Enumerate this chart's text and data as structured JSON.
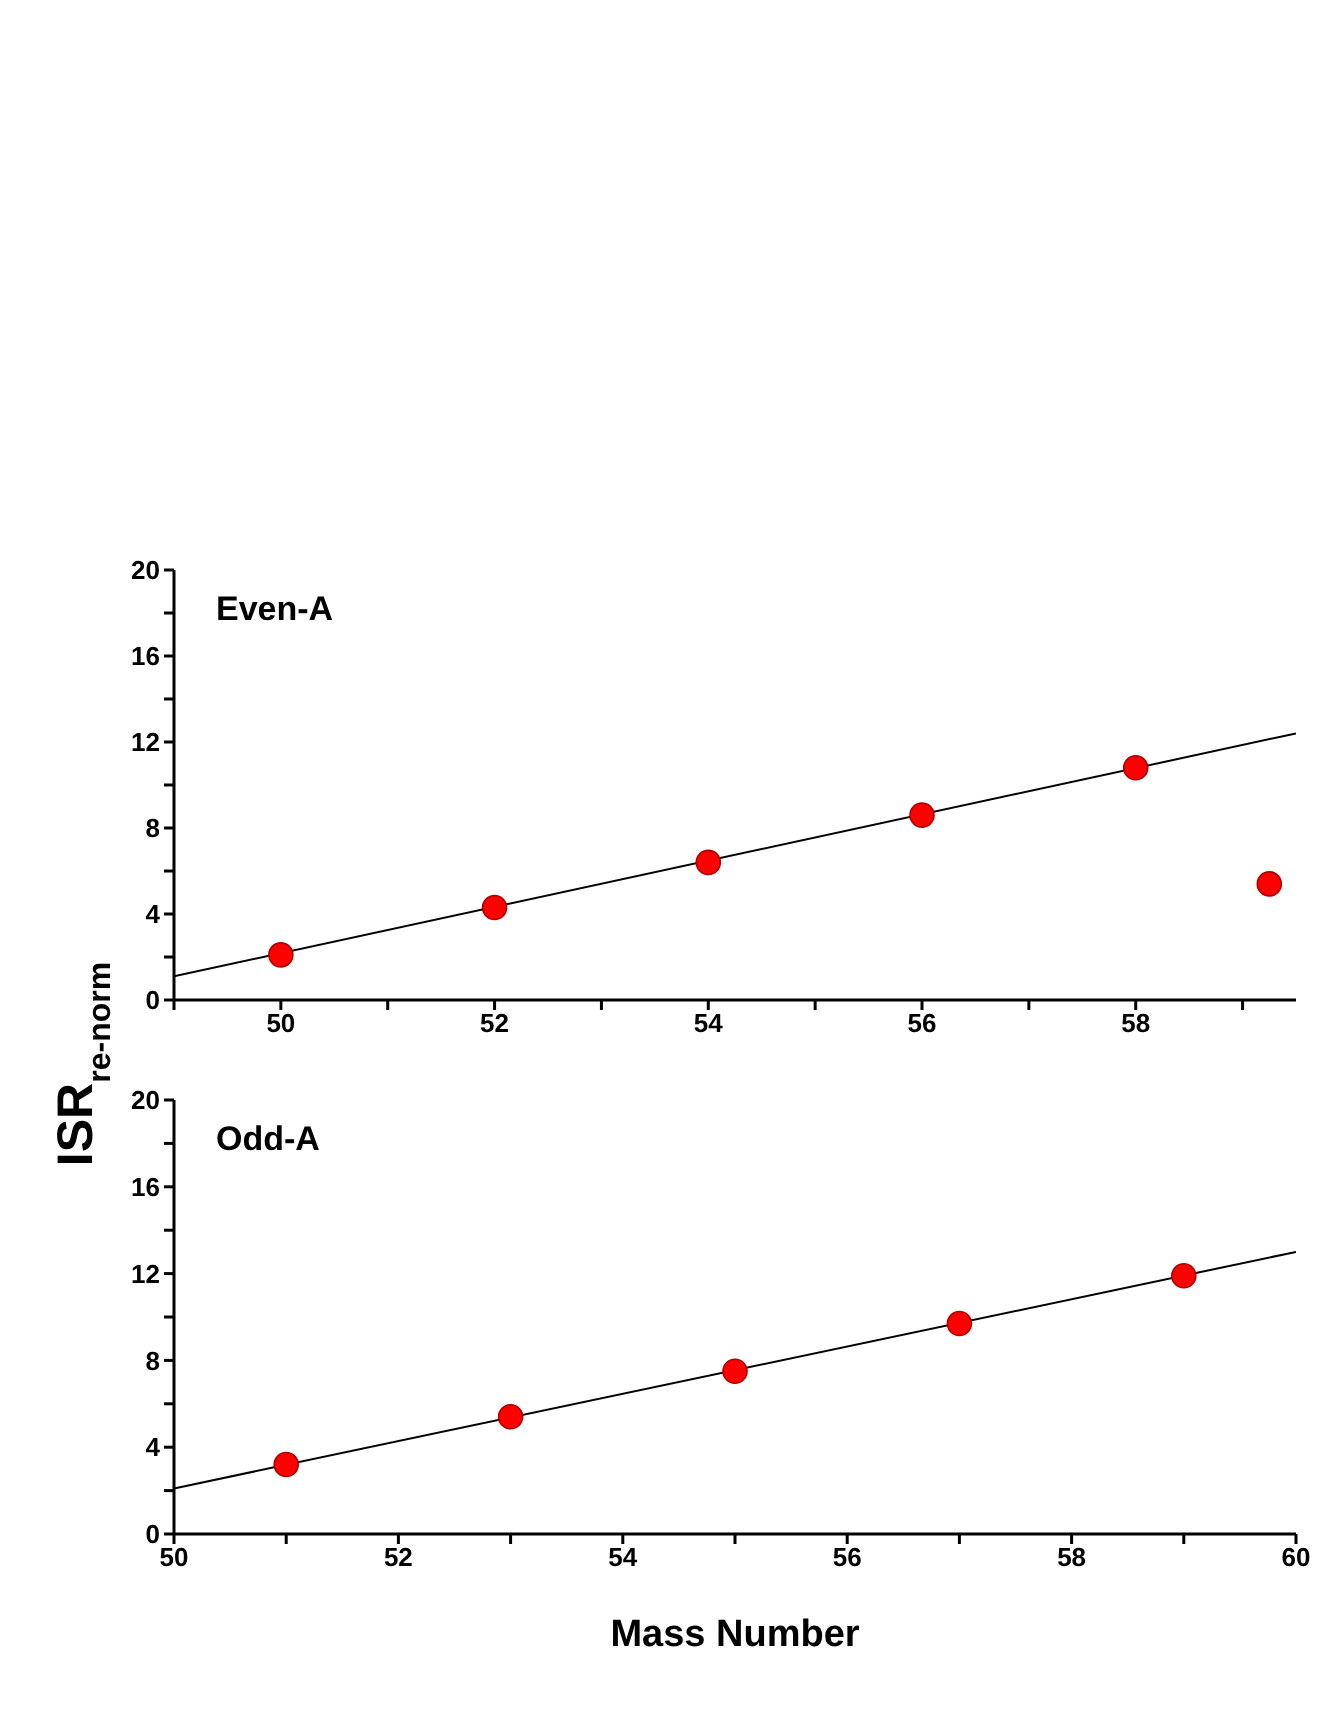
{
  "chart_data": [
    {
      "type": "scatter",
      "ylabel": "ISR$_{re-norm}$",
      "annotations": [
        "Even-A"
      ],
      "marker": "circle",
      "grid": false,
      "legend": false,
      "xlim": [
        49,
        59.5
      ],
      "xticks": [
        {
          "value": 49,
          "label": null
        },
        50,
        {
          "value": 51,
          "label": null
        },
        52,
        {
          "value": 53,
          "label": null
        },
        54,
        {
          "value": 55,
          "label": null
        },
        56,
        {
          "value": 57,
          "label": null
        },
        58,
        {
          "value": 59,
          "label": null
        }
      ],
      "ylim": [
        0,
        20
      ],
      "yticks": [
        0,
        {
          "value": 2,
          "label": null
        },
        4,
        {
          "value": 6,
          "label": null
        },
        8,
        {
          "value": 10,
          "label": null
        },
        12,
        {
          "value": 14,
          "label": null
        },
        16,
        {
          "value": 18,
          "label": null
        },
        20
      ],
      "series": [
        {
          "color": "#ff0000",
          "x": [
            50,
            52,
            54,
            56,
            58,
            59.25
          ],
          "values": [
            2.1,
            4.3,
            6.4,
            8.6,
            10.8,
            5.4
          ]
        },
        {
          "type": "line",
          "color": "#000000",
          "marker": "none",
          "x": [
            49,
            59.5
          ],
          "values": [
            1.1,
            12.4
          ]
        }
      ]
    },
    {
      "type": "scatter",
      "xlabel": "Mass Number",
      "annotations": [
        "Odd-A"
      ],
      "marker": "circle",
      "grid": false,
      "legend": false,
      "xlim": [
        50,
        60
      ],
      "xticks": [
        50,
        {
          "value": 51,
          "label": null
        },
        52,
        {
          "value": 53,
          "label": null
        },
        54,
        {
          "value": 55,
          "label": null
        },
        56,
        {
          "value": 57,
          "label": null
        },
        58,
        {
          "value": 59,
          "label": null
        },
        60
      ],
      "ylim": [
        0,
        20
      ],
      "yticks": [
        0,
        {
          "value": 2,
          "label": null
        },
        4,
        {
          "value": 6,
          "label": null
        },
        8,
        {
          "value": 10,
          "label": null
        },
        12,
        {
          "value": 14,
          "label": null
        },
        16,
        {
          "value": 18,
          "label": null
        },
        20
      ],
      "series": [
        {
          "color": "#ff0000",
          "x": [
            51,
            53,
            55,
            57,
            59
          ],
          "values": [
            3.2,
            5.4,
            7.5,
            9.7,
            11.9
          ]
        },
        {
          "type": "line",
          "color": "#000000",
          "marker": "none",
          "x": [
            50,
            60
          ],
          "values": [
            2.1,
            13
          ]
        }
      ]
    }
  ]
}
